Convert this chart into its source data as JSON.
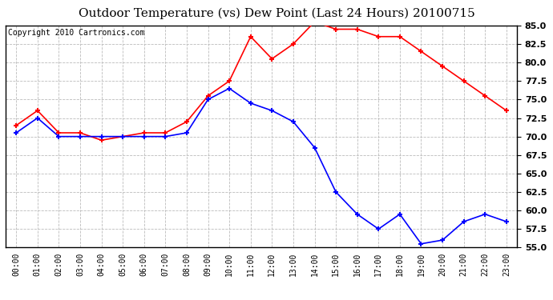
{
  "title": "Outdoor Temperature (vs) Dew Point (Last 24 Hours) 20100715",
  "copyright": "Copyright 2010 Cartronics.com",
  "hours": [
    0,
    1,
    2,
    3,
    4,
    5,
    6,
    7,
    8,
    9,
    10,
    11,
    12,
    13,
    14,
    15,
    16,
    17,
    18,
    19,
    20,
    21,
    22,
    23
  ],
  "hour_labels": [
    "00:00",
    "01:00",
    "02:00",
    "03:00",
    "04:00",
    "05:00",
    "06:00",
    "07:00",
    "08:00",
    "09:00",
    "10:00",
    "11:00",
    "12:00",
    "13:00",
    "14:00",
    "15:00",
    "16:00",
    "17:00",
    "18:00",
    "19:00",
    "20:00",
    "21:00",
    "22:00",
    "23:00"
  ],
  "temp_red": [
    71.5,
    73.5,
    70.5,
    70.5,
    69.5,
    70.0,
    70.5,
    70.5,
    72.0,
    75.5,
    77.5,
    83.5,
    80.5,
    82.5,
    85.5,
    84.5,
    84.5,
    83.5,
    83.5,
    81.5,
    79.5,
    77.5,
    75.5,
    73.5
  ],
  "dew_blue": [
    70.5,
    72.5,
    70.0,
    70.0,
    70.0,
    70.0,
    70.0,
    70.0,
    70.5,
    75.0,
    76.5,
    74.5,
    73.5,
    72.0,
    68.5,
    62.5,
    59.5,
    57.5,
    59.5,
    55.5,
    56.0,
    58.5,
    59.5,
    58.5
  ],
  "ylim": [
    55.0,
    85.0
  ],
  "yticks": [
    55.0,
    57.5,
    60.0,
    62.5,
    65.0,
    67.5,
    70.0,
    72.5,
    75.0,
    77.5,
    80.0,
    82.5,
    85.0
  ],
  "red_color": "#ff0000",
  "blue_color": "#0000ff",
  "bg_color": "#ffffff",
  "plot_bg": "#ffffff",
  "grid_color": "#bbbbbb",
  "title_fontsize": 11,
  "copyright_fontsize": 7,
  "tick_fontsize": 8,
  "xtick_fontsize": 7
}
